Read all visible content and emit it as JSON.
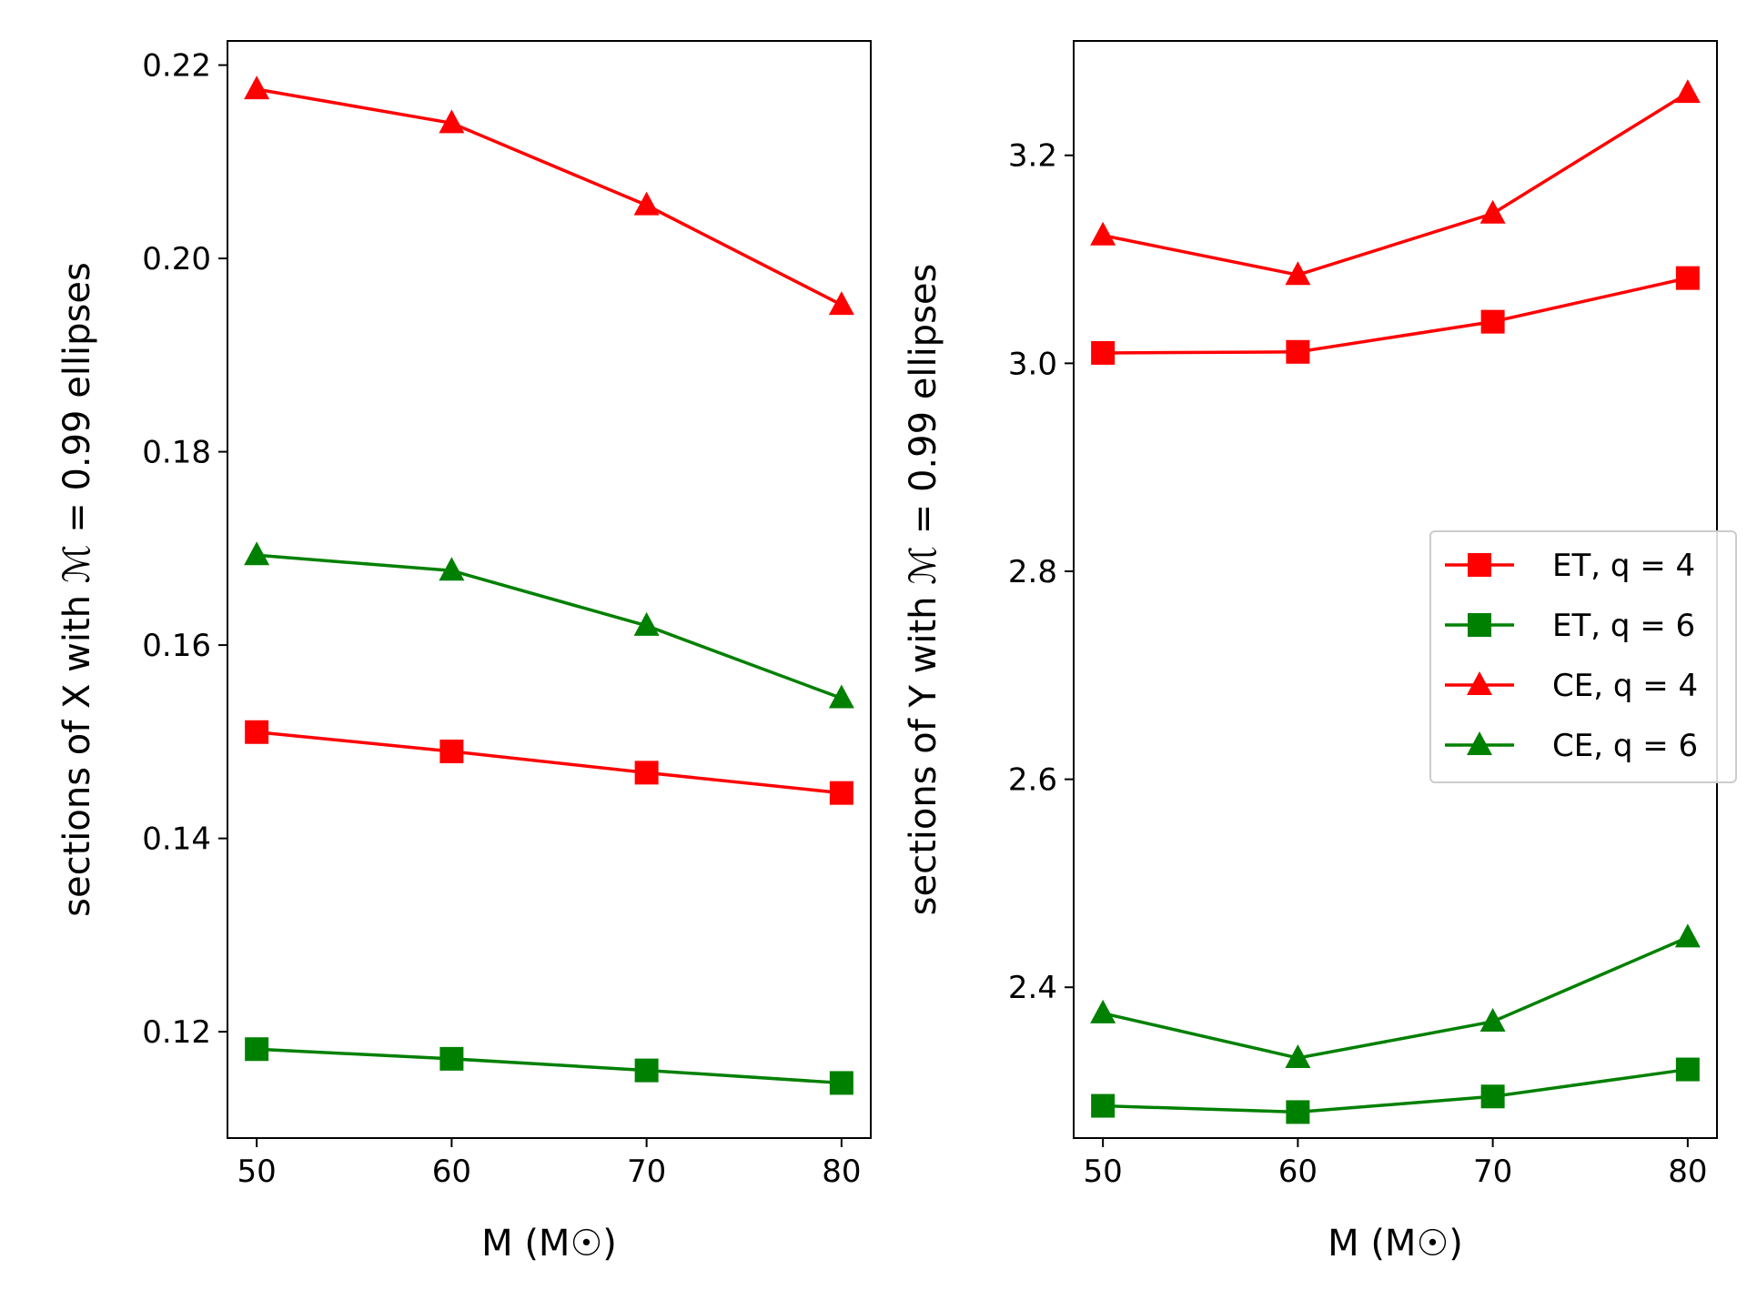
{
  "chart_data": [
    {
      "type": "line",
      "xlabel": "M (M☉)",
      "ylabel": "sections of X with ℳ = 0.99 ellipses",
      "x": [
        50,
        60,
        70,
        80
      ],
      "xticks": [
        "50",
        "60",
        "70",
        "80"
      ],
      "xlim": [
        48.5,
        81.5
      ],
      "ylim": [
        0.109,
        0.2225
      ],
      "yticks": [
        "0.12",
        "0.14",
        "0.16",
        "0.18",
        "0.20",
        "0.22"
      ],
      "ytick_values": [
        0.12,
        0.14,
        0.16,
        0.18,
        0.2,
        0.22
      ],
      "series": [
        {
          "name": "ET, q = 4",
          "detector": "ET",
          "q": "q = 4",
          "color": "#ff0000",
          "marker": "square",
          "values": [
            0.151,
            0.149,
            0.1468,
            0.1447
          ]
        },
        {
          "name": "ET, q = 6",
          "detector": "ET",
          "q": "q = 6",
          "color": "#008000",
          "marker": "square",
          "values": [
            0.1182,
            0.1172,
            0.116,
            0.1147
          ]
        },
        {
          "name": "CE, q = 4",
          "detector": "CE",
          "q": "q = 4",
          "color": "#ff0000",
          "marker": "triangle",
          "values": [
            0.2175,
            0.214,
            0.2055,
            0.1952
          ]
        },
        {
          "name": "CE, q = 6",
          "detector": "CE",
          "q": "q = 6",
          "color": "#008000",
          "marker": "triangle",
          "values": [
            0.1693,
            0.1677,
            0.162,
            0.1545
          ]
        }
      ]
    },
    {
      "type": "line",
      "xlabel": "M (M☉)",
      "ylabel": "sections of Y with ℳ = 0.99 ellipses",
      "x": [
        50,
        60,
        70,
        80
      ],
      "xticks": [
        "50",
        "60",
        "70",
        "80"
      ],
      "xlim": [
        48.5,
        81.5
      ],
      "ylim": [
        2.255,
        3.31
      ],
      "yticks": [
        "2.4",
        "2.6",
        "2.8",
        "3.0",
        "3.2"
      ],
      "ytick_values": [
        2.4,
        2.6,
        2.8,
        3.0,
        3.2
      ],
      "legend": {
        "location": "center-right"
      },
      "series": [
        {
          "name": "ET, q = 4",
          "detector": "ET",
          "q": "q = 4",
          "color": "#ff0000",
          "marker": "square",
          "values": [
            3.01,
            3.011,
            3.04,
            3.082
          ]
        },
        {
          "name": "ET, q = 6",
          "detector": "ET",
          "q": "q = 6",
          "color": "#008000",
          "marker": "square",
          "values": [
            2.286,
            2.28,
            2.295,
            2.321
          ]
        },
        {
          "name": "CE, q = 4",
          "detector": "CE",
          "q": "q = 4",
          "color": "#ff0000",
          "marker": "triangle",
          "values": [
            3.123,
            3.085,
            3.144,
            3.26
          ]
        },
        {
          "name": "CE, q = 6",
          "detector": "CE",
          "q": "q = 6",
          "color": "#008000",
          "marker": "triangle",
          "values": [
            2.375,
            2.332,
            2.367,
            2.448
          ]
        }
      ]
    }
  ]
}
